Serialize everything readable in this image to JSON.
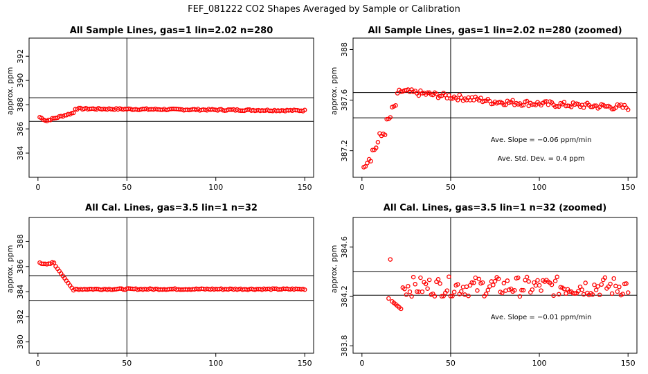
{
  "figure_title": "FEF_081222  CO2 Shapes Averaged by Sample or Calibration",
  "colors": {
    "marker": "#ff0000",
    "axis": "#000000"
  },
  "chart_data": [
    {
      "type": "scatter",
      "title": "All Sample Lines, gas=1 lin=2.02 n=280",
      "ylabel": "approx. ppm",
      "xlim": [
        -5,
        155
      ],
      "ylim": [
        382,
        393.5
      ],
      "xticks": [
        0,
        50,
        100,
        150
      ],
      "yticks": [
        384,
        386,
        388,
        390,
        392
      ],
      "vline": 50,
      "hlines": [
        386.62,
        388.57
      ],
      "shape": "sample",
      "annotations": []
    },
    {
      "type": "scatter",
      "title": "All Sample Lines, gas=1 lin=2.02 n=280 (zoomed)",
      "ylabel": "approx. ppm",
      "xlim": [
        -5,
        155
      ],
      "ylim": [
        386.99,
        388.09
      ],
      "xticks": [
        0,
        50,
        100,
        150
      ],
      "yticks": [
        387.2,
        387.6,
        388.0
      ],
      "vline": 50,
      "hlines": [
        387.46,
        387.66
      ],
      "shape": "sample-zoom",
      "annotations": [
        "Ave. Slope = −0.06  ppm/min",
        "Ave. Std. Dev. = 0.4  ppm"
      ]
    },
    {
      "type": "scatter",
      "title": "All Cal. Lines, gas=3.5 lin=1 n=32",
      "ylabel": "approx. ppm",
      "xlim": [
        -5,
        155
      ],
      "ylim": [
        379.1,
        389.9
      ],
      "xticks": [
        0,
        50,
        100,
        150
      ],
      "yticks": [
        380,
        382,
        384,
        386,
        388
      ],
      "vline": 50,
      "hlines": [
        383.3,
        385.27
      ],
      "shape": "cal",
      "annotations": []
    },
    {
      "type": "scatter",
      "title": "All Cal. Lines, gas=3.5 lin=1 n=32 (zoomed)",
      "ylabel": "approx. ppm",
      "xlim": [
        -5,
        155
      ],
      "ylim": [
        383.74,
        384.84
      ],
      "xticks": [
        0,
        50,
        100,
        150
      ],
      "yticks": [
        383.8,
        384.2,
        384.6
      ],
      "vline": 50,
      "hlines": [
        384.21,
        384.4
      ],
      "shape": "cal-zoom",
      "annotations": [
        "Ave. Slope = −0.01  ppm/min"
      ]
    }
  ]
}
